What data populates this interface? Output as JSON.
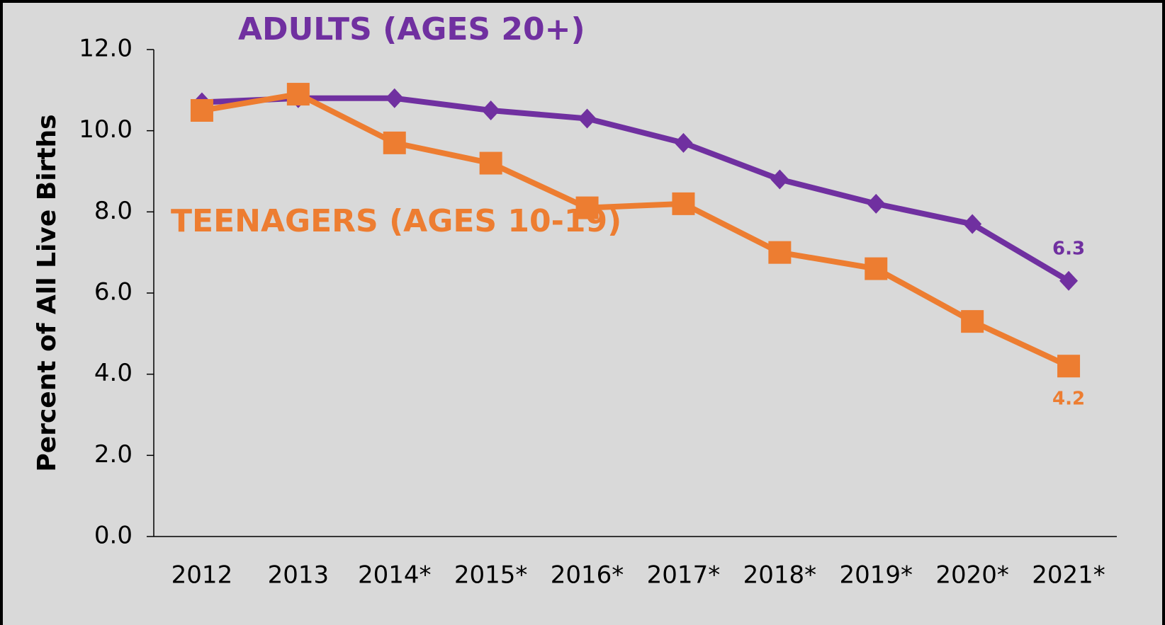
{
  "chart_data": {
    "type": "line",
    "y_label": "Percent of All Live Births",
    "categories": [
      "2012",
      "2013",
      "2014*",
      "2015*",
      "2016*",
      "2017*",
      "2018*",
      "2019*",
      "2020*",
      "2021*"
    ],
    "series": [
      {
        "name": "ADULTS (AGES 20+)",
        "color": "#7030a0",
        "marker": "diamond",
        "values": [
          10.7,
          10.8,
          10.8,
          10.5,
          10.3,
          9.7,
          8.8,
          8.2,
          7.7,
          6.3
        ],
        "value_labels": [
          null,
          null,
          null,
          null,
          null,
          null,
          null,
          null,
          null,
          "6.3"
        ]
      },
      {
        "name": "TEENAGERS (AGES 10-19)",
        "color": "#ed7d31",
        "marker": "square",
        "values": [
          10.5,
          10.9,
          9.7,
          9.2,
          8.1,
          8.2,
          7.0,
          6.6,
          5.3,
          4.2
        ],
        "value_labels": [
          null,
          null,
          null,
          null,
          null,
          null,
          null,
          null,
          null,
          "4.2"
        ]
      }
    ],
    "ylim": [
      0,
      12
    ],
    "yticks": [
      {
        "value": 0,
        "label": "0.0"
      },
      {
        "value": 2,
        "label": "2.0"
      },
      {
        "value": 4,
        "label": "4.0"
      },
      {
        "value": 6,
        "label": "6.0"
      },
      {
        "value": 8,
        "label": "8.0"
      },
      {
        "value": 10,
        "label": "10.0"
      },
      {
        "value": 12,
        "label": "12.0"
      }
    ],
    "grid": false
  }
}
